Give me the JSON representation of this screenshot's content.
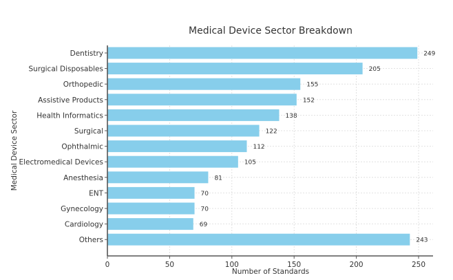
{
  "chart_data": {
    "type": "bar",
    "orientation": "horizontal",
    "title": "Medical Device Sector Breakdown",
    "xlabel": "Number of Standards",
    "ylabel": "Medical Device Sector",
    "categories": [
      "Dentistry",
      "Surgical Disposables",
      "Orthopedic",
      "Assistive Products",
      "Health Informatics",
      "Surgical",
      "Ophthalmic",
      "Electromedical Devices",
      "Anesthesia",
      "ENT",
      "Gynecology",
      "Cardiology",
      "Others"
    ],
    "values": [
      249,
      205,
      155,
      152,
      138,
      122,
      112,
      105,
      81,
      70,
      70,
      69,
      243
    ],
    "xlim": [
      0,
      261
    ],
    "xticks": [
      0,
      50,
      100,
      150,
      200,
      250
    ],
    "grid": true,
    "data_labels": true,
    "bar_color": "#87ceeb"
  }
}
